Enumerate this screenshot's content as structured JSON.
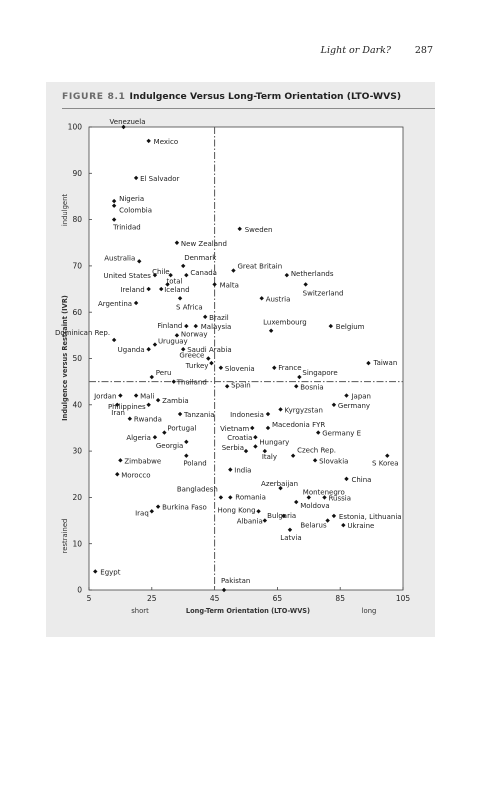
{
  "header": {
    "running_head": "Light or Dark?",
    "page_number": "287"
  },
  "figure": {
    "number": "FIGURE 8.1",
    "title": "Indulgence Versus Long-Term Orientation (LTO-WVS)"
  },
  "chart_data": {
    "type": "scatter",
    "xlabel": "Long-Term Orientation (LTO-WVS)",
    "ylabel": "Indulgence versus Restraint (IVR)",
    "xlim": [
      5,
      105
    ],
    "ylim": [
      0,
      100
    ],
    "x_ticks": [
      5,
      25,
      45,
      65,
      85,
      105
    ],
    "y_ticks": [
      0,
      10,
      20,
      30,
      40,
      50,
      60,
      70,
      80,
      90,
      100
    ],
    "x_end_labels": {
      "low": "short",
      "high": "long"
    },
    "y_end_labels": {
      "low": "restrained",
      "high": "indulgent"
    },
    "reference_lines": {
      "x": 45,
      "y": 45
    },
    "grid": false,
    "points": [
      {
        "label": "Venezuela",
        "x": 16,
        "y": 100
      },
      {
        "label": "Mexico",
        "x": 24,
        "y": 97
      },
      {
        "label": "El Salvador",
        "x": 20,
        "y": 89
      },
      {
        "label": "Nigeria",
        "x": 13,
        "y": 84
      },
      {
        "label": "Colombia",
        "x": 13,
        "y": 83
      },
      {
        "label": "Trinidad",
        "x": 13,
        "y": 80
      },
      {
        "label": "Sweden",
        "x": 53,
        "y": 78
      },
      {
        "label": "New Zealand",
        "x": 33,
        "y": 75
      },
      {
        "label": "Australia",
        "x": 21,
        "y": 71
      },
      {
        "label": "Denmark",
        "x": 35,
        "y": 70
      },
      {
        "label": "Chile",
        "x": 31,
        "y": 68
      },
      {
        "label": "Canada",
        "x": 36,
        "y": 68
      },
      {
        "label": "Great Britain",
        "x": 51,
        "y": 69
      },
      {
        "label": "Netherlands",
        "x": 68,
        "y": 68
      },
      {
        "label": "United States",
        "x": 26,
        "y": 68
      },
      {
        "label": "total",
        "x": 30,
        "y": 66
      },
      {
        "label": "Malta",
        "x": 45,
        "y": 66
      },
      {
        "label": "Ireland",
        "x": 24,
        "y": 65
      },
      {
        "label": "Iceland",
        "x": 28,
        "y": 65
      },
      {
        "label": "Switzerland",
        "x": 74,
        "y": 66
      },
      {
        "label": "Argentina",
        "x": 20,
        "y": 62
      },
      {
        "label": "S Africa",
        "x": 34,
        "y": 63
      },
      {
        "label": "Austria",
        "x": 60,
        "y": 63
      },
      {
        "label": "Brazil",
        "x": 42,
        "y": 59
      },
      {
        "label": "Finland",
        "x": 36,
        "y": 57
      },
      {
        "label": "Malaysia",
        "x": 39,
        "y": 57
      },
      {
        "label": "Luxembourg",
        "x": 63,
        "y": 56
      },
      {
        "label": "Belgium",
        "x": 82,
        "y": 57
      },
      {
        "label": "Norway",
        "x": 33,
        "y": 55
      },
      {
        "label": "Dominican Rep.",
        "x": 13,
        "y": 54
      },
      {
        "label": "Uruguay",
        "x": 26,
        "y": 53
      },
      {
        "label": "Uganda",
        "x": 24,
        "y": 52
      },
      {
        "label": "Saudi Arabia",
        "x": 35,
        "y": 52
      },
      {
        "label": "Greece",
        "x": 43,
        "y": 50
      },
      {
        "label": "Taiwan",
        "x": 94,
        "y": 49
      },
      {
        "label": "Turkey",
        "x": 44,
        "y": 49
      },
      {
        "label": "Slovenia",
        "x": 47,
        "y": 48
      },
      {
        "label": "France",
        "x": 64,
        "y": 48
      },
      {
        "label": "Singapore",
        "x": 72,
        "y": 46
      },
      {
        "label": "Peru",
        "x": 25,
        "y": 46
      },
      {
        "label": "Thailand",
        "x": 32,
        "y": 45
      },
      {
        "label": "Spain",
        "x": 49,
        "y": 44
      },
      {
        "label": "Bosnia",
        "x": 71,
        "y": 44
      },
      {
        "label": "Jordan",
        "x": 15,
        "y": 42
      },
      {
        "label": "Mali",
        "x": 20,
        "y": 42
      },
      {
        "label": "Japan",
        "x": 87,
        "y": 42
      },
      {
        "label": "Zambia",
        "x": 27,
        "y": 41
      },
      {
        "label": "Philippines",
        "x": 24,
        "y": 40
      },
      {
        "label": "Germany",
        "x": 83,
        "y": 40
      },
      {
        "label": "Iran",
        "x": 14,
        "y": 40
      },
      {
        "label": "Kyrgyzstan",
        "x": 66,
        "y": 39
      },
      {
        "label": "Indonesia",
        "x": 62,
        "y": 38
      },
      {
        "label": "Tanzania",
        "x": 34,
        "y": 38
      },
      {
        "label": "Rwanda",
        "x": 18,
        "y": 37
      },
      {
        "label": "Macedonia FYR",
        "x": 62,
        "y": 35
      },
      {
        "label": "Vietnam",
        "x": 57,
        "y": 35
      },
      {
        "label": "Germany E",
        "x": 78,
        "y": 34
      },
      {
        "label": "Portugal",
        "x": 29,
        "y": 34
      },
      {
        "label": "Croatia",
        "x": 58,
        "y": 33
      },
      {
        "label": "Algeria",
        "x": 26,
        "y": 33
      },
      {
        "label": "Georgia",
        "x": 36,
        "y": 32
      },
      {
        "label": "Hungary",
        "x": 58,
        "y": 31
      },
      {
        "label": "Serbia",
        "x": 55,
        "y": 30
      },
      {
        "label": "Czech Rep.",
        "x": 70,
        "y": 29
      },
      {
        "label": "S Korea",
        "x": 100,
        "y": 29
      },
      {
        "label": "Italy",
        "x": 61,
        "y": 30
      },
      {
        "label": "Zimbabwe",
        "x": 15,
        "y": 28
      },
      {
        "label": "Poland",
        "x": 36,
        "y": 29
      },
      {
        "label": "Slovakia",
        "x": 77,
        "y": 28
      },
      {
        "label": "India",
        "x": 50,
        "y": 26
      },
      {
        "label": "Morocco",
        "x": 14,
        "y": 25
      },
      {
        "label": "China",
        "x": 87,
        "y": 24
      },
      {
        "label": "Azerbaijan",
        "x": 66,
        "y": 22
      },
      {
        "label": "Montenegro",
        "x": 75,
        "y": 20
      },
      {
        "label": "Bangladesh",
        "x": 47,
        "y": 20
      },
      {
        "label": "Romania",
        "x": 50,
        "y": 20
      },
      {
        "label": "Russia",
        "x": 80,
        "y": 20
      },
      {
        "label": "Moldova",
        "x": 71,
        "y": 19
      },
      {
        "label": "Burkina Faso",
        "x": 27,
        "y": 18
      },
      {
        "label": "Hong Kong",
        "x": 59,
        "y": 17
      },
      {
        "label": "Iraq",
        "x": 25,
        "y": 17
      },
      {
        "label": "Estonia, Lithuania",
        "x": 83,
        "y": 16
      },
      {
        "label": "Albania",
        "x": 61,
        "y": 15
      },
      {
        "label": "Bulgaria",
        "x": 67,
        "y": 16
      },
      {
        "label": "Belarus",
        "x": 81,
        "y": 15
      },
      {
        "label": "Ukraine",
        "x": 86,
        "y": 14
      },
      {
        "label": "Latvia",
        "x": 69,
        "y": 13
      },
      {
        "label": "Egypt",
        "x": 7,
        "y": 4
      },
      {
        "label": "Pakistan",
        "x": 48,
        "y": 0
      }
    ]
  }
}
